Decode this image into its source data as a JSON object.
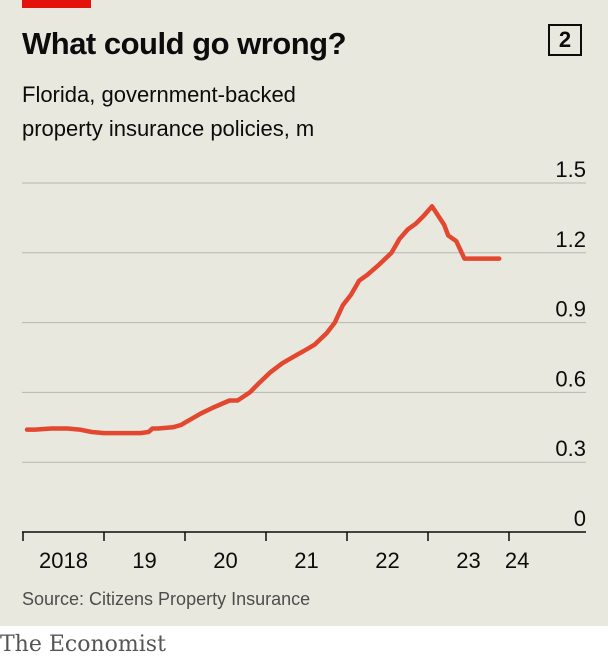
{
  "header": {
    "title": "What could go wrong?",
    "chart_number": "2",
    "subtitle_line1": "Florida, government-backed",
    "subtitle_line2": "property insurance policies, m"
  },
  "footer": {
    "source": "Source: Citizens Property Insurance",
    "publisher": "The Economist"
  },
  "colors": {
    "accent_red": "#e3120b",
    "line": "#e3472f",
    "background": "#e9e8df",
    "gridline": "#b7b6ae"
  },
  "chart_data": {
    "type": "line",
    "title": "What could go wrong?",
    "subtitle": "Florida, government-backed property insurance policies, m",
    "xlabel": "",
    "ylabel": "",
    "x_tick_labels": [
      "2018",
      "19",
      "20",
      "21",
      "22",
      "23",
      "24"
    ],
    "xlim": [
      2018,
      2024.1
    ],
    "yticks": [
      0,
      0.3,
      0.6,
      0.9,
      1.2,
      1.5
    ],
    "ytick_labels": [
      "0",
      "0.3",
      "0.6",
      "0.9",
      "1.2",
      "1.5"
    ],
    "ylim": [
      0,
      1.5
    ],
    "grid": "horizontal",
    "y_axis_side": "right",
    "series": [
      {
        "x": [
          2018.0,
          2018.1,
          2018.3,
          2018.5,
          2018.65,
          2018.8,
          2018.95,
          2019.1,
          2019.25,
          2019.4,
          2019.5,
          2019.55,
          2019.62,
          2019.8,
          2019.9,
          2020.0,
          2020.15,
          2020.3,
          2020.5,
          2020.6,
          2020.75,
          2020.85,
          2021.0,
          2021.15,
          2021.3,
          2021.45,
          2021.55,
          2021.7,
          2021.8,
          2021.9,
          2022.0,
          2022.1,
          2022.2,
          2022.35,
          2022.5,
          2022.6,
          2022.7,
          2022.8,
          2022.9,
          2023.0,
          2023.15,
          2023.2,
          2023.3,
          2023.4,
          2023.55,
          2023.65,
          2023.75,
          2023.8,
          2023.83
        ],
        "values": [
          0.44,
          0.44,
          0.445,
          0.445,
          0.44,
          0.43,
          0.425,
          0.425,
          0.425,
          0.425,
          0.43,
          0.445,
          0.445,
          0.45,
          0.46,
          0.48,
          0.51,
          0.535,
          0.565,
          0.565,
          0.6,
          0.635,
          0.685,
          0.725,
          0.755,
          0.785,
          0.805,
          0.855,
          0.9,
          0.975,
          1.02,
          1.08,
          1.105,
          1.15,
          1.2,
          1.26,
          1.3,
          1.325,
          1.36,
          1.4,
          1.32,
          1.275,
          1.25,
          1.175,
          1.175,
          1.175,
          1.175,
          1.175,
          1.175
        ]
      }
    ]
  }
}
